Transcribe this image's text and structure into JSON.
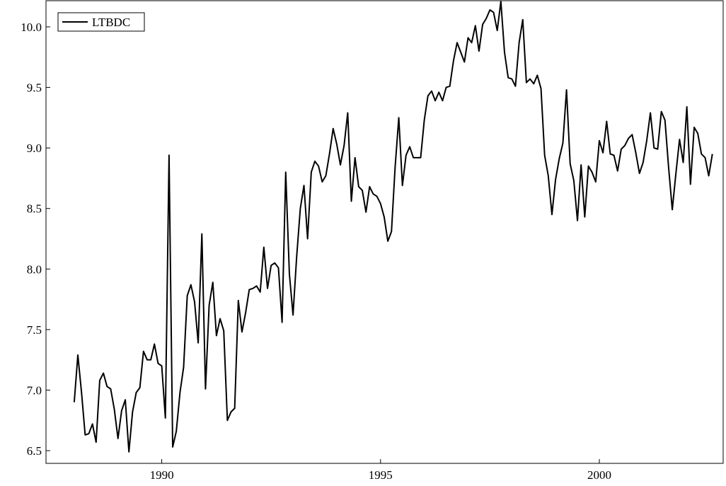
{
  "chart_data": {
    "type": "line",
    "x": [
      1988,
      1988.083,
      1988.167,
      1988.25,
      1988.333,
      1988.417,
      1988.5,
      1988.583,
      1988.667,
      1988.75,
      1988.833,
      1988.917,
      1989,
      1989.083,
      1989.167,
      1989.25,
      1989.333,
      1989.417,
      1989.5,
      1989.583,
      1989.667,
      1989.75,
      1989.833,
      1989.917,
      1990,
      1990.083,
      1990.167,
      1990.25,
      1990.333,
      1990.417,
      1990.5,
      1990.583,
      1990.667,
      1990.75,
      1990.833,
      1990.917,
      1991,
      1991.083,
      1991.167,
      1991.25,
      1991.333,
      1991.417,
      1991.5,
      1991.583,
      1991.667,
      1991.75,
      1991.833,
      1991.917,
      1992,
      1992.083,
      1992.167,
      1992.25,
      1992.333,
      1992.417,
      1992.5,
      1992.583,
      1992.667,
      1992.75,
      1992.833,
      1992.917,
      1993,
      1993.083,
      1993.167,
      1993.25,
      1993.333,
      1993.417,
      1993.5,
      1993.583,
      1993.667,
      1993.75,
      1993.833,
      1993.917,
      1994,
      1994.083,
      1994.167,
      1994.25,
      1994.333,
      1994.417,
      1994.5,
      1994.583,
      1994.667,
      1994.75,
      1994.833,
      1994.917,
      1995,
      1995.083,
      1995.167,
      1995.25,
      1995.333,
      1995.417,
      1995.5,
      1995.583,
      1995.667,
      1995.75,
      1995.833,
      1995.917,
      1996,
      1996.083,
      1996.167,
      1996.25,
      1996.333,
      1996.417,
      1996.5,
      1996.583,
      1996.667,
      1996.75,
      1996.833,
      1996.917,
      1997,
      1997.083,
      1997.167,
      1997.25,
      1997.333,
      1997.417,
      1997.5,
      1997.583,
      1997.667,
      1997.75,
      1997.833,
      1997.917,
      1998,
      1998.083,
      1998.167,
      1998.25,
      1998.333,
      1998.417,
      1998.5,
      1998.583,
      1998.667,
      1998.75,
      1998.833,
      1998.917,
      1999,
      1999.083,
      1999.167,
      1999.25,
      1999.333,
      1999.417,
      1999.5,
      1999.583,
      1999.667,
      1999.75,
      1999.833,
      1999.917,
      2000,
      2000.083,
      2000.167,
      2000.25,
      2000.333,
      2000.417,
      2000.5,
      2000.583,
      2000.667,
      2000.75,
      2000.833,
      2000.917,
      2001,
      2001.083,
      2001.167,
      2001.25,
      2001.333,
      2001.417,
      2001.5,
      2001.583,
      2001.667,
      2001.75,
      2001.833,
      2001.917,
      2002,
      2002.083,
      2002.167,
      2002.25,
      2002.333,
      2002.417,
      2002.5,
      2002.583
    ],
    "series": [
      {
        "name": "LTBDC",
        "color": "#000000",
        "values": [
          6.9,
          7.29,
          6.98,
          6.63,
          6.64,
          6.72,
          6.57,
          7.08,
          7.14,
          7.03,
          7.01,
          6.84,
          6.6,
          6.83,
          6.92,
          6.49,
          6.82,
          6.98,
          7.02,
          7.32,
          7.25,
          7.25,
          7.38,
          7.22,
          7.2,
          6.77,
          8.94,
          6.53,
          6.66,
          6.98,
          7.19,
          7.78,
          7.87,
          7.73,
          7.39,
          8.29,
          7.01,
          7.7,
          7.89,
          7.45,
          7.59,
          7.49,
          6.75,
          6.82,
          6.85,
          7.74,
          7.48,
          7.64,
          7.83,
          7.84,
          7.86,
          7.81,
          8.18,
          7.84,
          8.03,
          8.05,
          8.01,
          7.56,
          8.8,
          7.96,
          7.62,
          8.1,
          8.5,
          8.69,
          8.25,
          8.8,
          8.89,
          8.85,
          8.72,
          8.77,
          8.95,
          9.16,
          9.03,
          8.86,
          9.02,
          9.29,
          8.56,
          8.92,
          8.68,
          8.65,
          8.47,
          8.68,
          8.62,
          8.6,
          8.54,
          8.43,
          8.23,
          8.31,
          8.84,
          9.25,
          8.69,
          8.94,
          9.01,
          8.92,
          8.92,
          8.92,
          9.23,
          9.43,
          9.47,
          9.39,
          9.46,
          9.39,
          9.5,
          9.51,
          9.72,
          9.87,
          9.79,
          9.71,
          9.91,
          9.87,
          10.01,
          9.8,
          10.02,
          10.07,
          10.14,
          10.12,
          9.97,
          10.21,
          9.79,
          9.58,
          9.57,
          9.51,
          9.87,
          10.06,
          9.54,
          9.57,
          9.53,
          9.6,
          9.49,
          8.94,
          8.77,
          8.45,
          8.74,
          8.91,
          9.04,
          9.48,
          8.87,
          8.73,
          8.4,
          8.86,
          8.43,
          8.85,
          8.8,
          8.72,
          9.06,
          8.96,
          9.22,
          8.95,
          8.94,
          8.81,
          8.99,
          9.02,
          9.08,
          9.11,
          8.96,
          8.79,
          8.88,
          9.06,
          9.29,
          9.0,
          8.99,
          9.3,
          9.23,
          8.84,
          8.49,
          8.79,
          9.07,
          8.88,
          9.34,
          8.7,
          9.17,
          9.12,
          8.95,
          8.92,
          8.77,
          8.95
        ]
      }
    ],
    "xlim": [
      1987.355,
      2002.83
    ],
    "xticks": [
      1990,
      1995,
      2000
    ],
    "ylim": [
      6.395,
      10.216
    ],
    "yticks": [
      6.5,
      {
        "value": 7,
        "label": "7.0"
      },
      7.5,
      {
        "value": 8,
        "label": "8.0"
      },
      8.5,
      {
        "value": 9,
        "label": "9.0"
      },
      9.5,
      {
        "value": 10,
        "label": "10.0"
      }
    ],
    "legend": "upper left"
  }
}
